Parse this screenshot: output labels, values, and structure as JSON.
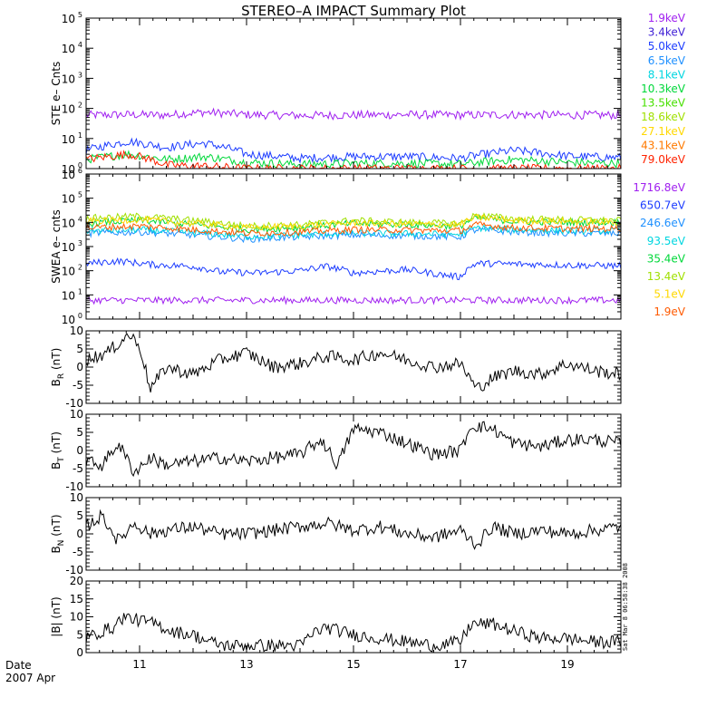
{
  "title": "STEREO–A IMPACT Summary Plot",
  "date_label": "Date",
  "date_value": "2007 Apr",
  "timestamp": "Sat Mar 8 06:58:38 2008",
  "chart_data": [
    {
      "id": "ste",
      "type": "line",
      "ylabel": "STE e– Cnts",
      "yscale": "log",
      "ylim": [
        1,
        100000
      ],
      "yticks": [
        {
          "base": "10",
          "exp": "0"
        },
        {
          "base": "10",
          "exp": "1"
        },
        {
          "base": "10",
          "exp": "2"
        },
        {
          "base": "10",
          "exp": "3"
        },
        {
          "base": "10",
          "exp": "4"
        },
        {
          "base": "10",
          "exp": "5"
        }
      ],
      "xlim": [
        10.0,
        20.0
      ],
      "legend": [
        {
          "label": "1.9keV",
          "color": "#a020f0"
        },
        {
          "label": "3.4keV",
          "color": "#3f1fd6"
        },
        {
          "label": "5.0keV",
          "color": "#1c3cff"
        },
        {
          "label": "6.5keV",
          "color": "#1e90ff"
        },
        {
          "label": "8.1keV",
          "color": "#00d6e0"
        },
        {
          "label": "10.3keV",
          "color": "#00d83a"
        },
        {
          "label": "13.5keV",
          "color": "#48e000"
        },
        {
          "label": "18.6keV",
          "color": "#a0e000"
        },
        {
          "label": "27.1keV",
          "color": "#ffd800"
        },
        {
          "label": "43.1keV",
          "color": "#ff7a00"
        },
        {
          "label": "79.0keV",
          "color": "#ff2200"
        }
      ],
      "series": [
        {
          "color": "#a020f0",
          "x": [
            10.0,
            10.8,
            11.5,
            12.2,
            13.0,
            14.0,
            15.0,
            16.0,
            17.0,
            18.0,
            19.0,
            20.0
          ],
          "y": [
            60,
            62,
            60,
            75,
            62,
            58,
            60,
            62,
            60,
            62,
            60,
            60
          ]
        },
        {
          "color": "#1c3cff",
          "x": [
            10.0,
            10.8,
            11.5,
            12.2,
            13.0,
            14.0,
            15.0,
            16.0,
            17.0,
            18.0,
            19.0,
            20.0
          ],
          "y": [
            4,
            8,
            5,
            7,
            3,
            2.2,
            2.5,
            2.5,
            2.2,
            4,
            2.6,
            2.3
          ]
        },
        {
          "color": "#00d83a",
          "x": [
            10.0,
            10.8,
            11.5,
            12.2,
            13.0,
            14.0,
            15.0,
            16.0,
            17.0,
            18.0,
            19.0,
            20.0
          ],
          "y": [
            2,
            3,
            2,
            2.5,
            1.6,
            1.4,
            1.5,
            1.5,
            1.4,
            2,
            1.6,
            1.5
          ]
        },
        {
          "color": "#ff2200",
          "x": [
            10.0,
            10.8,
            11.5,
            12.2,
            13.0,
            14.0,
            15.0,
            16.0,
            17.0,
            18.0,
            19.0,
            20.0
          ],
          "y": [
            2,
            3,
            1.3,
            1.2,
            1,
            1,
            1,
            1,
            1,
            1,
            1,
            1
          ]
        }
      ]
    },
    {
      "id": "swea",
      "type": "line",
      "ylabel": "SWEA e– cnts",
      "yscale": "log",
      "ylim": [
        1,
        1000000
      ],
      "yticks": [
        {
          "base": "10",
          "exp": "0"
        },
        {
          "base": "10",
          "exp": "1"
        },
        {
          "base": "10",
          "exp": "2"
        },
        {
          "base": "10",
          "exp": "3"
        },
        {
          "base": "10",
          "exp": "4"
        },
        {
          "base": "10",
          "exp": "5"
        },
        {
          "base": "10",
          "exp": "6"
        }
      ],
      "xlim": [
        10.0,
        20.0
      ],
      "legend": [
        {
          "label": "1716.8eV",
          "color": "#a020f0"
        },
        {
          "label": "650.7eV",
          "color": "#1c3cff"
        },
        {
          "label": "246.6eV",
          "color": "#1e90ff"
        },
        {
          "label": "93.5eV",
          "color": "#00d6e0"
        },
        {
          "label": "35.4eV",
          "color": "#00d83a"
        },
        {
          "label": "13.4eV",
          "color": "#a0e000"
        },
        {
          "label": "5.1eV",
          "color": "#ffd800"
        },
        {
          "label": "1.9eV",
          "color": "#ff5a00"
        }
      ],
      "series": [
        {
          "color": "#a020f0",
          "x": [
            10.0,
            12.0,
            14.0,
            16.0,
            18.0,
            20.0
          ],
          "y": [
            6,
            6,
            6,
            6,
            6,
            6
          ]
        },
        {
          "color": "#1c3cff",
          "x": [
            10.0,
            10.6,
            11.2,
            12.0,
            12.5,
            13.2,
            14.0,
            14.5,
            15.0,
            16.0,
            16.6,
            17.0,
            17.3,
            18.0,
            19.0,
            20.0
          ],
          "y": [
            200,
            250,
            180,
            150,
            90,
            80,
            100,
            150,
            80,
            110,
            70,
            55,
            200,
            190,
            170,
            160
          ]
        },
        {
          "color": "#1e90ff",
          "x": [
            10.0,
            11.0,
            12.0,
            13.0,
            14.0,
            15.0,
            16.0,
            17.0,
            17.3,
            18.0,
            19.0,
            20.0
          ],
          "y": [
            3500,
            4000,
            3000,
            2000,
            2500,
            3000,
            2800,
            2500,
            5000,
            4000,
            3500,
            3500
          ]
        },
        {
          "color": "#00d6e0",
          "x": [
            10.0,
            11.0,
            12.0,
            13.0,
            14.0,
            15.0,
            16.0,
            17.0,
            17.3,
            18.0,
            19.0,
            20.0
          ],
          "y": [
            4500,
            5000,
            3800,
            2600,
            3000,
            3600,
            3400,
            3200,
            6000,
            5000,
            4500,
            4500
          ]
        },
        {
          "color": "#00d83a",
          "x": [
            10.0,
            11.0,
            12.0,
            13.0,
            14.0,
            15.0,
            16.0,
            17.0,
            17.3,
            18.0,
            19.0,
            20.0
          ],
          "y": [
            9000,
            12000,
            8000,
            5000,
            6000,
            9000,
            8000,
            7000,
            15000,
            11000,
            10000,
            10000
          ]
        },
        {
          "color": "#a0e000",
          "x": [
            10.0,
            11.0,
            12.0,
            13.0,
            14.0,
            15.0,
            16.0,
            17.0,
            17.3,
            18.0,
            19.0,
            20.0
          ],
          "y": [
            15000,
            18000,
            12000,
            7000,
            8000,
            12000,
            10000,
            9000,
            20000,
            14000,
            13000,
            12000
          ]
        },
        {
          "color": "#ffd800",
          "x": [
            10.0,
            11.0,
            12.0,
            13.0,
            14.0,
            15.0,
            16.0,
            17.0,
            17.3,
            18.0,
            19.0,
            20.0
          ],
          "y": [
            11000,
            13000,
            9000,
            6000,
            7000,
            9500,
            8500,
            8000,
            16000,
            12000,
            11000,
            10000
          ]
        },
        {
          "color": "#ff5a00",
          "x": [
            10.0,
            11.0,
            12.0,
            13.0,
            14.0,
            15.0,
            16.0,
            17.0,
            17.3,
            18.0,
            19.0,
            20.0
          ],
          "y": [
            6000,
            7000,
            5000,
            3500,
            4000,
            5000,
            4800,
            4500,
            8000,
            6000,
            5500,
            5500
          ]
        }
      ]
    },
    {
      "id": "br",
      "type": "line",
      "ylabel_main": "B",
      "ylabel_sub": "R",
      "ylabel_unit": " (nT)",
      "ylim": [
        -10,
        10
      ],
      "yticks": [
        -10,
        -5,
        0,
        5,
        10
      ],
      "xlim": [
        10.0,
        20.0
      ],
      "series": [
        {
          "color": "#000000",
          "x": [
            10.0,
            10.4,
            10.8,
            11.0,
            11.2,
            11.5,
            12.0,
            12.5,
            13.0,
            13.5,
            14.0,
            14.5,
            15.0,
            15.5,
            16.0,
            16.5,
            17.0,
            17.3,
            17.6,
            18.0,
            18.5,
            19.0,
            19.5,
            20.0
          ],
          "y": [
            2,
            4,
            9,
            6,
            -6,
            0,
            -2,
            2,
            4,
            0,
            1,
            3,
            2,
            4,
            2,
            0,
            1,
            -6,
            -3,
            -1,
            -2,
            1,
            -1,
            -2
          ]
        }
      ]
    },
    {
      "id": "bt",
      "type": "line",
      "ylabel_main": "B",
      "ylabel_sub": "T",
      "ylabel_unit": " (nT)",
      "ylim": [
        -10,
        10
      ],
      "yticks": [
        -10,
        -5,
        0,
        5,
        10
      ],
      "xlim": [
        10.0,
        20.0
      ],
      "series": [
        {
          "color": "#000000",
          "x": [
            10.0,
            10.3,
            10.6,
            10.9,
            11.2,
            11.5,
            12.0,
            12.5,
            13.0,
            13.5,
            14.0,
            14.4,
            14.7,
            15.0,
            15.5,
            16.0,
            16.5,
            17.0,
            17.2,
            17.6,
            18.0,
            18.5,
            19.0,
            19.5,
            20.0
          ],
          "y": [
            -3,
            -4,
            2,
            -6,
            -2,
            -4,
            -3,
            -2,
            -3,
            -2,
            -1,
            3,
            -4,
            6,
            5,
            2,
            -1,
            0,
            7,
            6,
            2,
            1,
            3,
            3,
            2
          ]
        }
      ]
    },
    {
      "id": "bn",
      "type": "line",
      "ylabel_main": "B",
      "ylabel_sub": "N",
      "ylabel_unit": " (nT)",
      "ylim": [
        -10,
        10
      ],
      "yticks": [
        -10,
        -5,
        0,
        5,
        10
      ],
      "xlim": [
        10.0,
        20.0
      ],
      "series": [
        {
          "color": "#000000",
          "x": [
            10.0,
            10.3,
            10.6,
            10.9,
            11.2,
            11.5,
            12.0,
            12.5,
            13.0,
            13.5,
            14.0,
            14.5,
            15.0,
            15.5,
            16.0,
            16.5,
            17.0,
            17.3,
            17.6,
            18.0,
            18.5,
            19.0,
            19.5,
            20.0
          ],
          "y": [
            2,
            5,
            -2,
            3,
            0,
            1,
            2,
            0,
            0,
            1,
            2,
            3,
            1,
            2,
            0,
            -1,
            1,
            -3,
            2,
            0,
            1,
            0,
            1,
            2
          ]
        }
      ]
    },
    {
      "id": "bmag",
      "type": "line",
      "ylabel_main": "|B| (nT)",
      "ylim": [
        0,
        20
      ],
      "yticks": [
        0,
        5,
        10,
        15,
        20
      ],
      "xlim": [
        10.0,
        20.0
      ],
      "xticks": [
        11,
        13,
        15,
        17,
        19
      ],
      "xticklabels": [
        "11",
        "13",
        "15",
        "17",
        "19"
      ],
      "series": [
        {
          "color": "#000000",
          "x": [
            10.0,
            10.3,
            10.5,
            10.7,
            11.0,
            11.3,
            11.6,
            12.0,
            12.3,
            12.6,
            13.0,
            13.5,
            14.0,
            14.3,
            14.5,
            15.0,
            15.5,
            16.0,
            16.5,
            17.0,
            17.2,
            17.6,
            18.0,
            18.5,
            19.0,
            19.5,
            20.0
          ],
          "y": [
            4,
            6,
            7,
            10,
            9,
            8,
            6,
            5,
            3,
            2,
            2,
            2,
            2,
            6,
            7,
            5,
            4,
            3,
            2,
            3,
            8,
            8,
            6,
            4,
            4,
            3,
            3
          ]
        }
      ]
    }
  ]
}
